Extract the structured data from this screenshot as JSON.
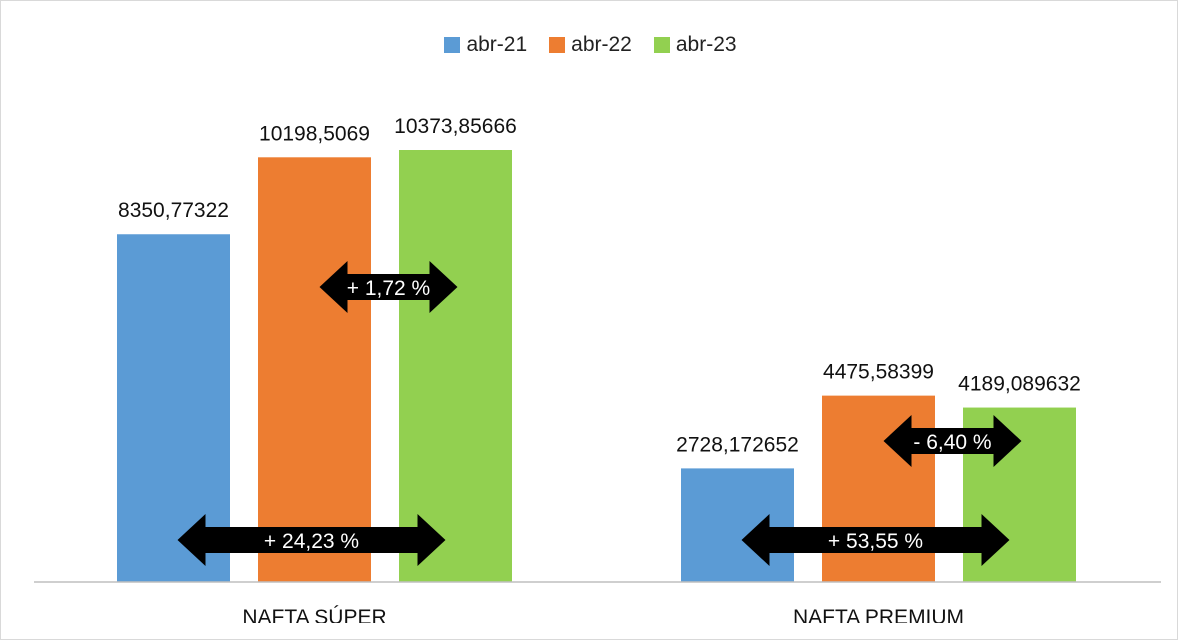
{
  "chart_data": {
    "type": "bar",
    "categories": [
      "NAFTA SÚPER",
      "NAFTA PREMIUM"
    ],
    "series": [
      {
        "name": "abr-21",
        "color": "#5b9bd5",
        "values": [
          8350.77322,
          2728.172652
        ],
        "labels": [
          "8350,77322",
          "2728,172652"
        ]
      },
      {
        "name": "abr-22",
        "color": "#ed7d31",
        "values": [
          10198.5069,
          4475.58399
        ],
        "labels": [
          "10198,5069",
          "4475,58399"
        ]
      },
      {
        "name": "abr-23",
        "color": "#92d050",
        "values": [
          10373.85666,
          4189.089632
        ],
        "labels": [
          "10373,85666",
          "4189,089632"
        ]
      }
    ],
    "ylim": [
      0,
      12000
    ],
    "grid": false,
    "legend_position": "top-center",
    "annotations": [
      {
        "category": "NAFTA SÚPER",
        "from": "abr-22",
        "to": "abr-23",
        "text": "+ 1,72 %"
      },
      {
        "category": "NAFTA SÚPER",
        "from": "abr-21",
        "to": "abr-23",
        "text": "+ 24,23 %"
      },
      {
        "category": "NAFTA PREMIUM",
        "from": "abr-22",
        "to": "abr-23",
        "text": "- 6,40 %"
      },
      {
        "category": "NAFTA PREMIUM",
        "from": "abr-21",
        "to": "abr-23",
        "text": "+ 53,55 %"
      }
    ]
  }
}
